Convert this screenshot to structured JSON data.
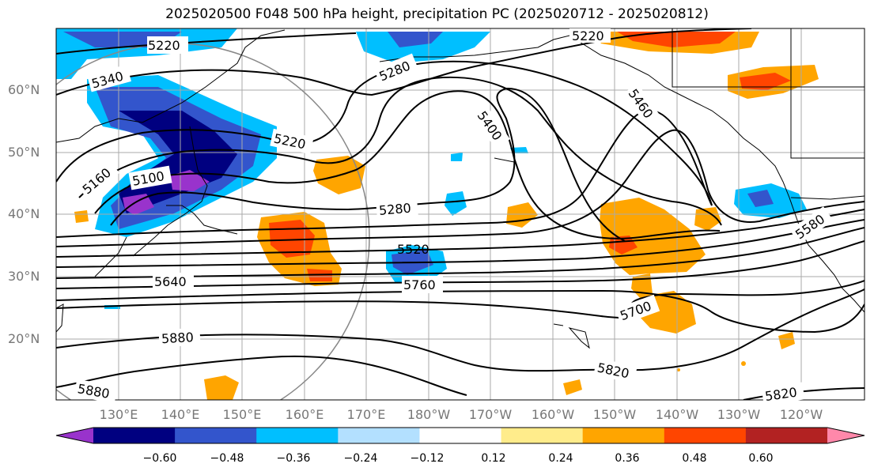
{
  "title": "2025020500 F048 500 hPa height, precipitation PC (2025020712 - 2025020812)",
  "lat_labels": [
    "60°N",
    "50°N",
    "40°N",
    "30°N",
    "20°N"
  ],
  "lon_labels": [
    "130°E",
    "140°E",
    "150°E",
    "160°E",
    "170°E",
    "180°W",
    "170°W",
    "160°W",
    "150°W",
    "140°W",
    "130°W",
    "120°W"
  ],
  "contour_labels": [
    "5220",
    "5340",
    "5280",
    "5220",
    "5460",
    "5400",
    "5160",
    "5100",
    "5280",
    "5520",
    "5580",
    "5640",
    "5760",
    "5700",
    "5880",
    "5820",
    "5880",
    "5820",
    "5220"
  ],
  "colorbar": {
    "colors": [
      "#9933cc",
      "#000080",
      "#3355cc",
      "#00bfff",
      "#b3e0ff",
      "#ffffff",
      "#ffec8b",
      "#ffa500",
      "#ff4500",
      "#b22222",
      "#ff88aa"
    ],
    "ticks": [
      "−0.60",
      "−0.48",
      "−0.36",
      "−0.24",
      "−0.12",
      "0.12",
      "0.24",
      "0.36",
      "0.48",
      "0.60"
    ]
  }
}
